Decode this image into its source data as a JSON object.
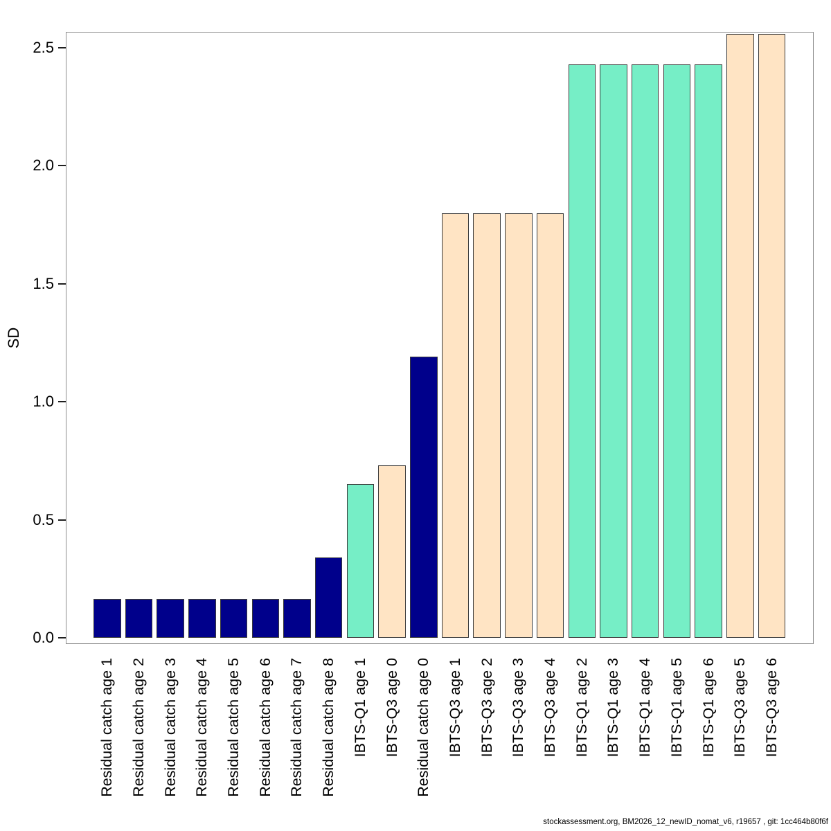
{
  "figure": {
    "ylabel": "SD",
    "footer": "stockassessment.org, BM2026_12_newID_nomat_v6, r19657 , git: 1cc464b80f6f"
  },
  "chart_data": {
    "type": "bar",
    "title": "",
    "xlabel": "",
    "ylabel": "SD",
    "ylim": [
      0,
      2.57
    ],
    "grid": false,
    "legend": null,
    "ytick_labels": [
      "0.0",
      "0.5",
      "1.0",
      "1.5",
      "2.0",
      "2.5"
    ],
    "ytick_values": [
      0.0,
      0.5,
      1.0,
      1.5,
      2.0,
      2.5
    ],
    "categories": [
      "Residual catch age 1",
      "Residual catch age 2",
      "Residual catch age 3",
      "Residual catch age 4",
      "Residual catch age 5",
      "Residual catch age 6",
      "Residual catch age 7",
      "Residual catch age 8",
      "IBTS-Q1 age 1",
      "IBTS-Q3 age 0",
      "Residual catch age 0",
      "IBTS-Q3 age 1",
      "IBTS-Q3 age 2",
      "IBTS-Q3 age 3",
      "IBTS-Q3 age 4",
      "IBTS-Q1 age 2",
      "IBTS-Q1 age 3",
      "IBTS-Q1 age 4",
      "IBTS-Q1 age 5",
      "IBTS-Q1 age 6",
      "IBTS-Q3 age 5",
      "IBTS-Q3 age 6"
    ],
    "values": [
      0.165,
      0.165,
      0.165,
      0.165,
      0.165,
      0.165,
      0.165,
      0.34,
      0.65,
      0.73,
      1.19,
      1.8,
      1.8,
      1.8,
      1.8,
      2.43,
      2.43,
      2.43,
      2.43,
      2.43,
      2.56,
      2.56
    ],
    "groups": [
      "residual-catch",
      "residual-catch",
      "residual-catch",
      "residual-catch",
      "residual-catch",
      "residual-catch",
      "residual-catch",
      "residual-catch",
      "ibts-q1",
      "ibts-q3",
      "residual-catch",
      "ibts-q3",
      "ibts-q3",
      "ibts-q3",
      "ibts-q3",
      "ibts-q1",
      "ibts-q1",
      "ibts-q1",
      "ibts-q1",
      "ibts-q1",
      "ibts-q3",
      "ibts-q3"
    ],
    "palette": {
      "residual-catch": "#00008B",
      "ibts-q1": "#76EEC6",
      "ibts-q3": "#FFE4C4"
    },
    "bar_border_color": "#3a3a3a"
  }
}
